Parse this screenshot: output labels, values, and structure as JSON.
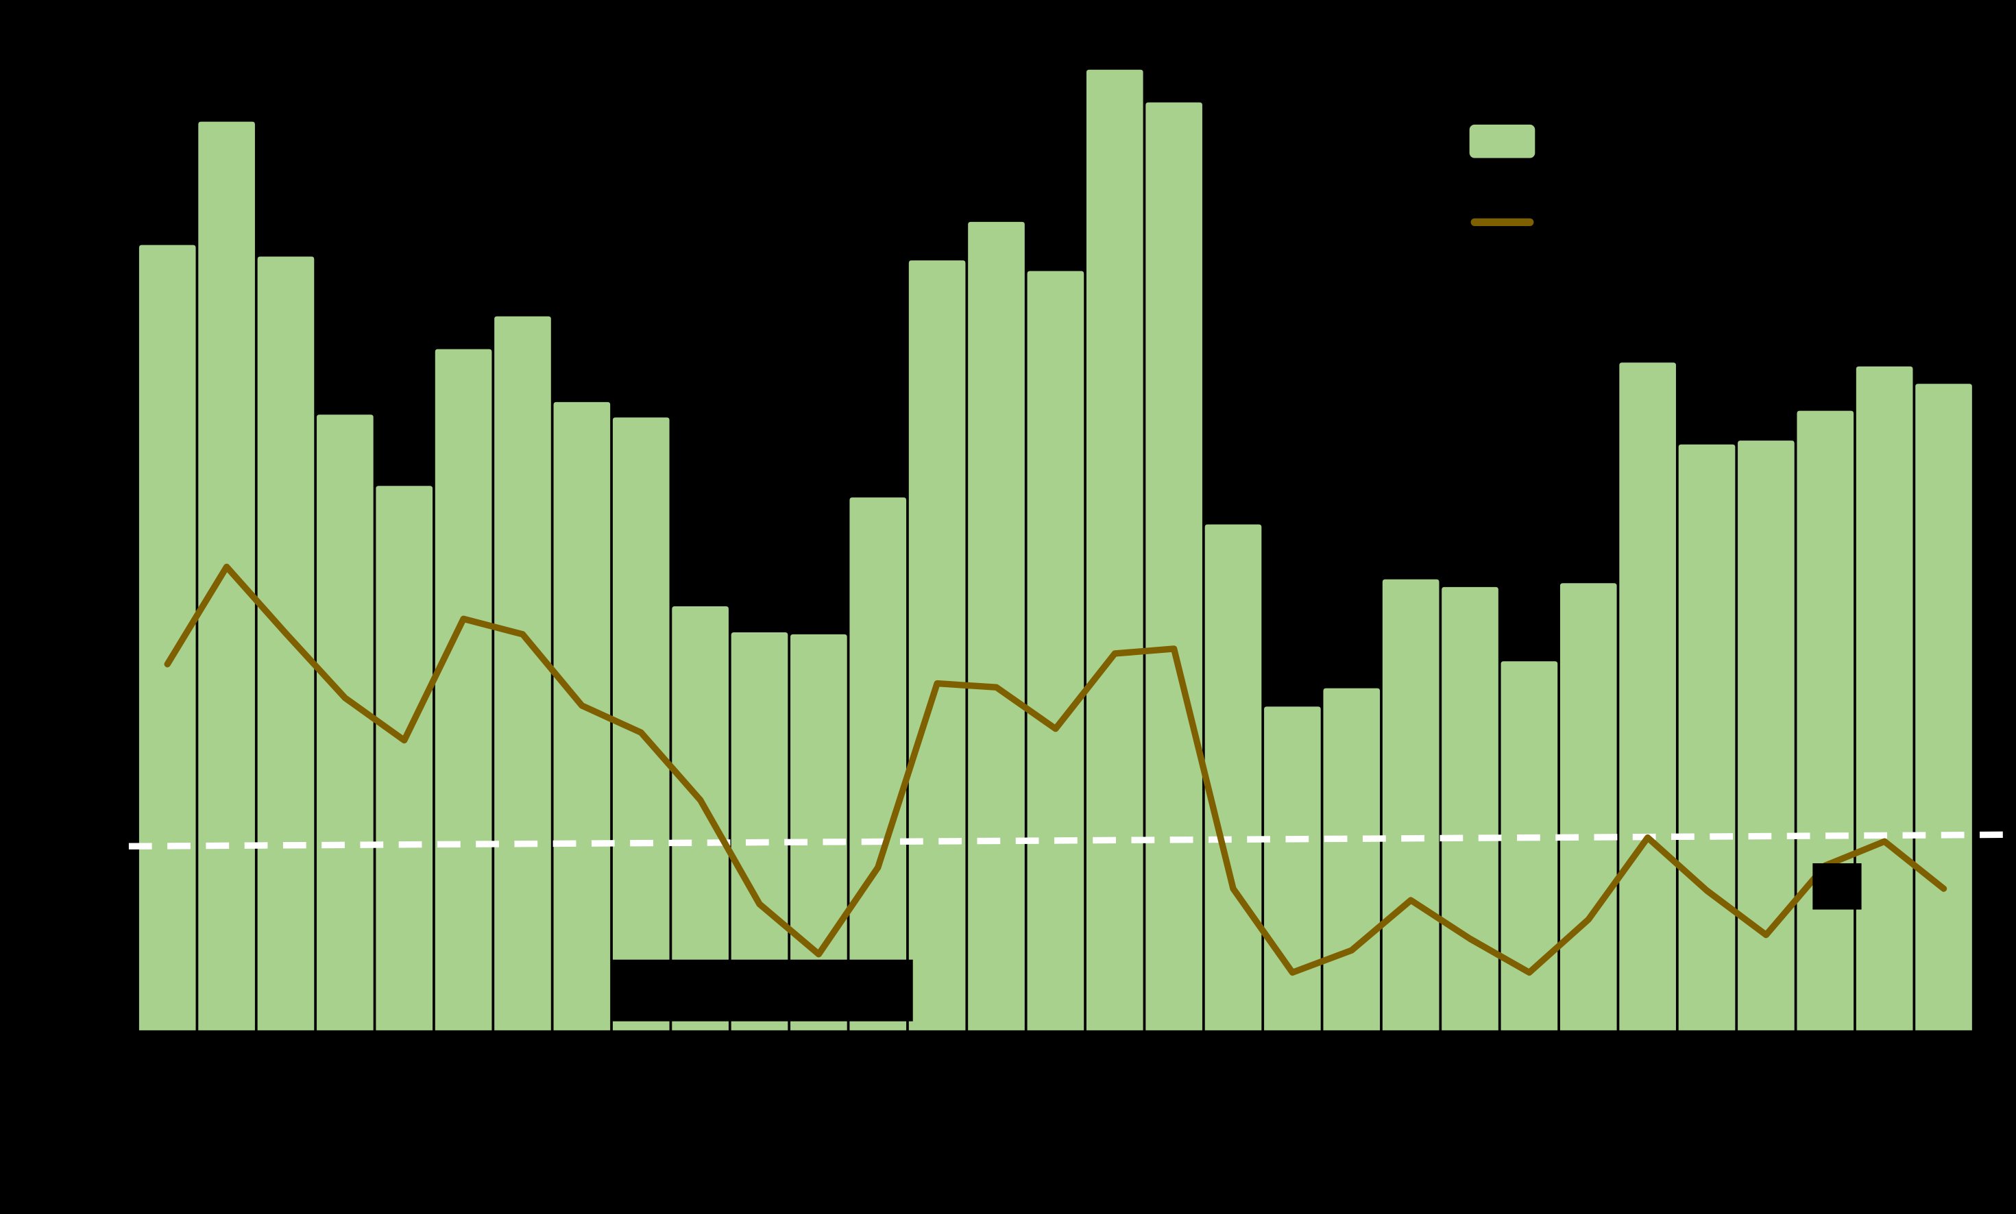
{
  "chart_data": {
    "type": "bar",
    "categories": [
      null,
      null,
      null,
      null,
      null,
      null,
      null,
      null,
      null,
      null,
      null,
      null,
      null,
      null,
      null,
      null,
      null,
      null,
      null,
      null,
      null,
      null,
      null,
      null,
      null,
      null,
      null,
      null,
      null,
      null,
      null
    ],
    "series": [
      {
        "type": "bar",
        "color": "#a9d18e",
        "values": [
          81.5,
          94.3,
          80.3,
          63.9,
          56.5,
          70.7,
          74.1,
          65.2,
          63.6,
          44,
          41.3,
          41.1,
          55.3,
          79.9,
          83.9,
          78.8,
          99.7,
          96.3,
          52.5,
          33.6,
          35.5,
          46.8,
          46,
          38.3,
          46.4,
          69.3,
          60.8,
          61.2,
          64.3,
          68.9,
          67.1
        ]
      },
      {
        "type": "line",
        "color": "#7f6000",
        "values": [
          38,
          48.1,
          41.2,
          34.5,
          30.1,
          42.7,
          41.1,
          33.7,
          30.9,
          23.9,
          13.1,
          7.9,
          16.9,
          36,
          35.6,
          31.3,
          39.1,
          39.6,
          14.7,
          6,
          8.3,
          13.5,
          9.5,
          6,
          11.5,
          20,
          14.5,
          9.9,
          17.1,
          19.6,
          14.7
        ]
      }
    ],
    "trend_line": {
      "color": "#ffffff",
      "values": [
        19.1,
        20.3
      ]
    },
    "ylim": [
      0,
      100
    ]
  }
}
